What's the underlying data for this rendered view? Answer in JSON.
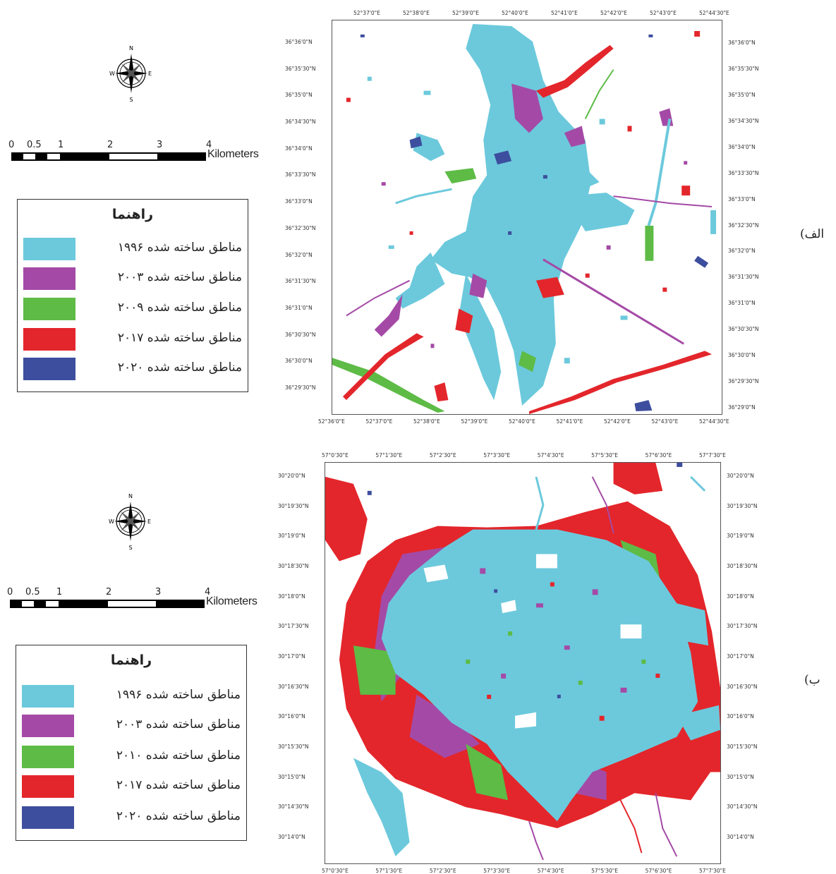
{
  "scale": {
    "ticks": [
      "0",
      "0.5",
      "1",
      "2",
      "3",
      "4"
    ],
    "unit": "Kilometers"
  },
  "compass": {
    "north": "N",
    "south": "S",
    "east": "E",
    "west": "W"
  },
  "colors": {
    "built_1996": "#6cc9dc",
    "built_2003": "#a44aa6",
    "built_2009_2010": "#5dbb46",
    "built_2017": "#e3262b",
    "built_2020": "#3d4e9e"
  },
  "panel_a": {
    "label": "الف)",
    "legend_title": "راهنما",
    "legend": [
      {
        "label": "مناطق ساخته شده ۱۹۹۶",
        "color": "#6cc9dc"
      },
      {
        "label": "مناطق ساخته شده ۲۰۰۳",
        "color": "#a44aa6"
      },
      {
        "label": "مناطق ساخته شده ۲۰۰۹",
        "color": "#5dbb46"
      },
      {
        "label": "مناطق ساخته شده ۲۰۱۷",
        "color": "#e3262b"
      },
      {
        "label": "مناطق ساخته شده ۲۰۲۰",
        "color": "#3d4e9e"
      }
    ],
    "top_ticks": [
      "52°37'0\"E",
      "52°38'0\"E",
      "52°39'0\"E",
      "52°40'0\"E",
      "52°41'0\"E",
      "52°42'0\"E",
      "52°43'0\"E",
      "52°44'30\"E"
    ],
    "bottom_ticks": [
      "52°36'0\"E",
      "52°37'0\"E",
      "52°38'0\"E",
      "52°39'0\"E",
      "52°40'0\"E",
      "52°41'0\"E",
      "52°42'0\"E",
      "52°43'0\"E",
      "52°44'30\"E"
    ],
    "left_ticks": [
      "36°36'0\"N",
      "36°35'30\"N",
      "36°35'0\"N",
      "36°34'30\"N",
      "36°34'0\"N",
      "36°33'30\"N",
      "36°33'0\"N",
      "36°32'30\"N",
      "36°32'0\"N",
      "36°31'30\"N",
      "36°31'0\"N",
      "36°30'30\"N",
      "36°30'0\"N",
      "36°29'30\"N"
    ],
    "right_ticks": [
      "36°36'0\"N",
      "36°35'30\"N",
      "36°35'0\"N",
      "36°34'30\"N",
      "36°34'0\"N",
      "36°33'30\"N",
      "36°33'0\"N",
      "36°32'30\"N",
      "36°32'0\"N",
      "36°31'30\"N",
      "36°31'0\"N",
      "36°30'30\"N",
      "36°30'0\"N",
      "36°29'30\"N",
      "36°29'0\"N"
    ]
  },
  "panel_b": {
    "label": "ب)",
    "legend_title": "راهنما",
    "legend": [
      {
        "label": "مناطق ساخته شده ۱۹۹۶",
        "color": "#6cc9dc"
      },
      {
        "label": "مناطق ساخته شده ۲۰۰۳",
        "color": "#a44aa6"
      },
      {
        "label": "مناطق ساخته شده ۲۰۱۰",
        "color": "#5dbb46"
      },
      {
        "label": "مناطق ساخته شده ۲۰۱۷",
        "color": "#e3262b"
      },
      {
        "label": "مناطق ساخته شده ۲۰۲۰",
        "color": "#3d4e9e"
      }
    ],
    "top_ticks": [
      "57°0'30\"E",
      "57°1'30\"E",
      "57°2'30\"E",
      "57°3'30\"E",
      "57°4'30\"E",
      "57°5'30\"E",
      "57°6'30\"E",
      "57°7'30\"E"
    ],
    "bottom_ticks": [
      "57°0'30\"E",
      "57°1'30\"E",
      "57°2'30\"E",
      "57°3'30\"E",
      "57°4'30\"E",
      "57°5'30\"E",
      "57°6'30\"E",
      "57°7'30\"E"
    ],
    "left_ticks": [
      "30°20'0\"N",
      "30°19'30\"N",
      "30°19'0\"N",
      "30°18'30\"N",
      "30°18'0\"N",
      "30°17'30\"N",
      "30°17'0\"N",
      "30°16'30\"N",
      "30°16'0\"N",
      "30°15'30\"N",
      "30°15'0\"N",
      "30°14'30\"N",
      "30°14'0\"N"
    ],
    "right_ticks": [
      "30°20'0\"N",
      "30°19'30\"N",
      "30°19'0\"N",
      "30°18'30\"N",
      "30°18'0\"N",
      "30°17'30\"N",
      "30°17'0\"N",
      "30°16'30\"N",
      "30°16'0\"N",
      "30°15'30\"N",
      "30°15'0\"N",
      "30°14'30\"N",
      "30°14'0\"N"
    ]
  }
}
